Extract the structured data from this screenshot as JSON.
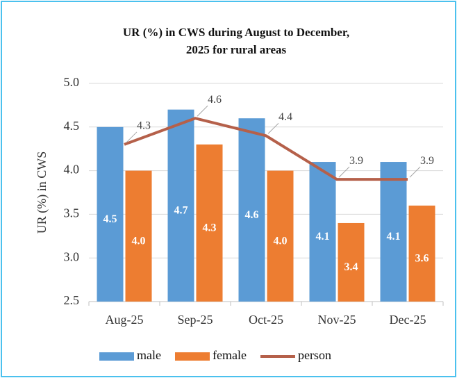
{
  "chart_data": {
    "type": "bar",
    "title": [
      "UR (%) in CWS during August to December,",
      "2025 for rural areas"
    ],
    "y_label": "UR (%) in CWS",
    "categories": [
      "Aug-25",
      "Sep-25",
      "Oct-25",
      "Nov-25",
      "Dec-25"
    ],
    "series": [
      {
        "name": "male",
        "type": "bar",
        "color": "#5b9bd5",
        "values": [
          4.5,
          4.7,
          4.6,
          4.1,
          4.1
        ],
        "value_labels": [
          "4.5",
          "4.7",
          "4.6",
          "4.1",
          "4.1"
        ]
      },
      {
        "name": "female",
        "type": "bar",
        "color": "#ed7d31",
        "values": [
          4.0,
          4.3,
          4.0,
          3.4,
          3.6
        ],
        "value_labels": [
          "4.0",
          "4.3",
          "4.0",
          "3.4",
          "3.6"
        ]
      },
      {
        "name": "person",
        "type": "line",
        "color": "#b5604a",
        "values": [
          4.3,
          4.6,
          4.4,
          3.9,
          3.9
        ],
        "value_labels": [
          "4.3",
          "4.6",
          "4.4",
          "3.9",
          "3.9"
        ]
      }
    ],
    "ylim": [
      2.5,
      5.0
    ],
    "yticks": [
      {
        "value": 2.5,
        "label": "2.5"
      },
      {
        "value": 3,
        "label": "3.0"
      },
      {
        "value": 3.5,
        "label": "3.5"
      },
      {
        "value": 4,
        "label": "4.0"
      },
      {
        "value": 4.5,
        "label": "4.5"
      },
      {
        "value": 5,
        "label": "5.0"
      }
    ],
    "grid": true,
    "legend": "bottom"
  }
}
